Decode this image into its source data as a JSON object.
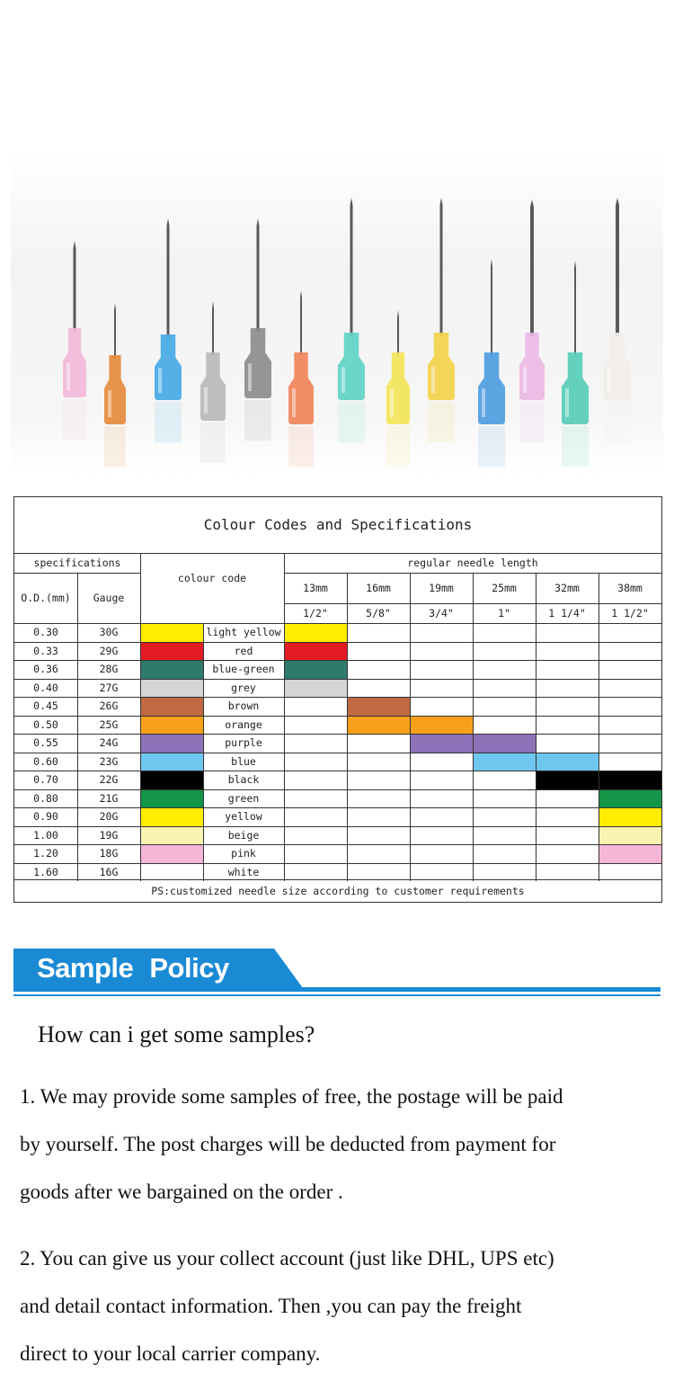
{
  "table": {
    "title": "Colour Codes and Specifications",
    "header": {
      "specifications": "specifications",
      "od": "O.D.(mm)",
      "gauge": "Gauge",
      "colour_code": "colour code",
      "regular_length": "regular needle length",
      "lengths_mm": [
        "13mm",
        "16mm",
        "19mm",
        "25mm",
        "32mm",
        "38mm"
      ],
      "lengths_in": [
        "1/2\"",
        "5/8\"",
        "3/4\"",
        "1\"",
        "1 1/4\"",
        "1 1/2\""
      ]
    },
    "rows": [
      {
        "od": "0.30",
        "gauge": "30G",
        "colour": "light yellow",
        "hex": "#ffec00",
        "lengths": [
          0
        ]
      },
      {
        "od": "0.33",
        "gauge": "29G",
        "colour": "red",
        "hex": "#e31b23",
        "lengths": [
          0
        ]
      },
      {
        "od": "0.36",
        "gauge": "28G",
        "colour": "blue-green",
        "hex": "#2f7a6c",
        "lengths": [
          0
        ]
      },
      {
        "od": "0.40",
        "gauge": "27G",
        "colour": "grey",
        "hex": "#d5d5d5",
        "lengths": [
          0
        ]
      },
      {
        "od": "0.45",
        "gauge": "26G",
        "colour": "brown",
        "hex": "#c06a42",
        "lengths": [
          1
        ]
      },
      {
        "od": "0.50",
        "gauge": "25G",
        "colour": "orange",
        "hex": "#f7a11a",
        "lengths": [
          1,
          2
        ]
      },
      {
        "od": "0.55",
        "gauge": "24G",
        "colour": "purple",
        "hex": "#8e72b8",
        "lengths": [
          2,
          3
        ]
      },
      {
        "od": "0.60",
        "gauge": "23G",
        "colour": "blue",
        "hex": "#6fc7ef",
        "lengths": [
          3,
          4
        ]
      },
      {
        "od": "0.70",
        "gauge": "22G",
        "colour": "black",
        "hex": "#000000",
        "lengths": [
          4,
          5
        ]
      },
      {
        "od": "0.80",
        "gauge": "21G",
        "colour": "green",
        "hex": "#139447",
        "lengths": [
          5
        ]
      },
      {
        "od": "0.90",
        "gauge": "20G",
        "colour": "yellow",
        "hex": "#ffec00",
        "lengths": [
          5
        ]
      },
      {
        "od": "1.00",
        "gauge": "19G",
        "colour": "beige",
        "hex": "#fbf3b0",
        "lengths": [
          5
        ]
      },
      {
        "od": "1.20",
        "gauge": "18G",
        "colour": "pink",
        "hex": "#f6b6d8",
        "lengths": [
          5
        ]
      },
      {
        "od": "1.60",
        "gauge": "16G",
        "colour": "white",
        "hex": "#ffffff",
        "lengths": []
      }
    ],
    "footnote": "PS:customized needle size according to customer requirements"
  },
  "banner": {
    "title": "Sample Policy",
    "color": "#1a8ad5"
  },
  "policy": {
    "question": "How can i get some samples?",
    "lines": [
      "1. We may provide some samples of free, the postage will be paid",
      "by yourself. The post charges will be deducted from payment for",
      "goods after we bargained on the order .",
      "2. You can give us your collect account (just like DHL, UPS etc)",
      "and detail contact information.  Then ,you can pay the freight",
      "direct to your local carrier company."
    ]
  },
  "photo": {
    "hub_colors": [
      "#f2b8d8",
      "#e58a3c",
      "#46a9e6",
      "#b9b9b9",
      "#8c8c8c",
      "#f0845a",
      "#5fd2c4",
      "#f3e458",
      "#f2d24a",
      "#4f9de0",
      "#eab8e3",
      "#56cdb8",
      "#f1ede8"
    ]
  }
}
